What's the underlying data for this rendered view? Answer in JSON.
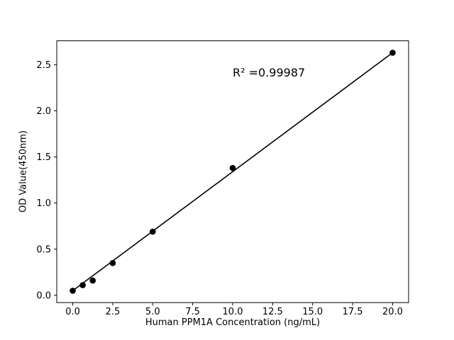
{
  "figure": {
    "background": "#ffffff"
  },
  "chart_data": {
    "type": "scatter",
    "title": "",
    "xlabel": "Human PPM1A Concentration (ng/mL)",
    "ylabel": "OD Value(450nm)",
    "x": [
      0,
      0.625,
      1.25,
      2.5,
      5,
      10,
      20
    ],
    "y": [
      0.05,
      0.11,
      0.16,
      0.35,
      0.69,
      1.38,
      2.63
    ],
    "fit_line": {
      "x0": 0,
      "y0": 0.05,
      "x1": 20,
      "y1": 2.63
    },
    "xlim": [
      -1,
      21
    ],
    "ylim": [
      -0.079,
      2.759
    ],
    "xticks": [
      0,
      2.5,
      5,
      7.5,
      10,
      12.5,
      15,
      17.5,
      20
    ],
    "xtick_labels": [
      "0.0",
      "2.5",
      "5.0",
      "7.5",
      "10.0",
      "12.5",
      "15.0",
      "17.5",
      "20.0"
    ],
    "yticks": [
      0,
      0.5,
      1,
      1.5,
      2,
      2.5
    ],
    "ytick_labels": [
      "0.0",
      "0.5",
      "1.0",
      "1.5",
      "2.0",
      "2.5"
    ],
    "annotation": {
      "text": "R² =0.99987",
      "x": 10,
      "y": 2.37
    },
    "grid": false,
    "legend": "none",
    "colors": {
      "marker": "#000000",
      "line": "#000000",
      "axis": "#000000",
      "background": "#ffffff"
    }
  }
}
